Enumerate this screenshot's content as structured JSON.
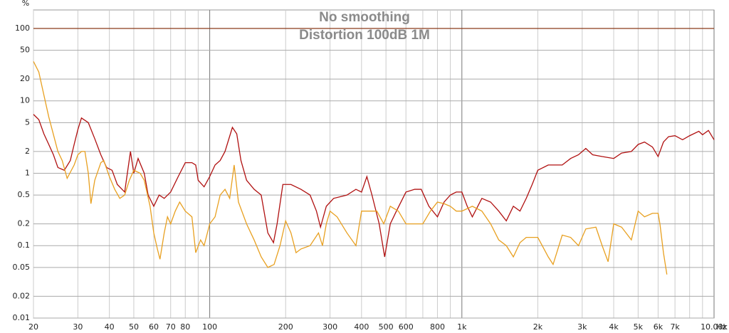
{
  "chart_data": {
    "type": "line",
    "title": "No smoothing",
    "subtitle": "Distortion 100dB 1M",
    "y_label": "%",
    "x_label": "Hz",
    "xscale": "log",
    "yscale": "log",
    "grid": true,
    "xlim": [
      20,
      10000
    ],
    "ylim": [
      0.01,
      180
    ],
    "xticks": [
      20,
      30,
      40,
      50,
      60,
      70,
      80,
      100,
      200,
      300,
      400,
      500,
      600,
      800,
      {
        "value": 1000,
        "label": "1k"
      },
      {
        "value": 2000,
        "label": "2k"
      },
      {
        "value": 3000,
        "label": "3k"
      },
      {
        "value": 4000,
        "label": "4k"
      },
      {
        "value": 5000,
        "label": "5k"
      },
      {
        "value": 6000,
        "label": "6k"
      },
      {
        "value": 7000,
        "label": "7k"
      },
      {
        "value": 10000,
        "label": "10.00k"
      }
    ],
    "xminor": [
      90,
      700,
      900,
      8000,
      9000
    ],
    "yticks": [
      100,
      50,
      20,
      10,
      5,
      2,
      1,
      0.5,
      0.2,
      0.1,
      0.05,
      0.02,
      0.01
    ],
    "reference_line": 100,
    "series": [
      {
        "color": "#b01010",
        "x": [
          20,
          21,
          22,
          23,
          24,
          25,
          26.5,
          28,
          29,
          30,
          31,
          33,
          35,
          37,
          39,
          41,
          43,
          46,
          48.5,
          50,
          52,
          55,
          57,
          60,
          63,
          66,
          70,
          75,
          80,
          85,
          88,
          90,
          95,
          100,
          105,
          110,
          115,
          123,
          128,
          133,
          140,
          150,
          160,
          170,
          179,
          185,
          195,
          210,
          230,
          250,
          265,
          275,
          290,
          310,
          350,
          380,
          400,
          420,
          440,
          470,
          494,
          520,
          550,
          600,
          650,
          690,
          740,
          800,
          850,
          900,
          950,
          1000,
          1050,
          1100,
          1200,
          1300,
          1400,
          1500,
          1600,
          1700,
          1800,
          1900,
          2000,
          2200,
          2500,
          2700,
          2900,
          3100,
          3300,
          3600,
          4000,
          4300,
          4700,
          5000,
          5300,
          5700,
          6000,
          6300,
          6600,
          7000,
          7500,
          8000,
          8700,
          9000,
          9500,
          10000
        ],
        "values": [
          6.5,
          5.5,
          3.5,
          2.5,
          1.8,
          1.2,
          1.1,
          1.5,
          2.5,
          4,
          5.8,
          5,
          3,
          1.8,
          1.2,
          1.1,
          0.7,
          0.55,
          2,
          1,
          1.6,
          1,
          0.5,
          0.35,
          0.5,
          0.45,
          0.55,
          0.9,
          1.4,
          1.4,
          1.3,
          0.8,
          0.65,
          0.9,
          1.3,
          1.5,
          2,
          4.3,
          3.5,
          1.5,
          0.8,
          0.6,
          0.5,
          0.15,
          0.11,
          0.2,
          0.7,
          0.7,
          0.6,
          0.5,
          0.3,
          0.18,
          0.35,
          0.45,
          0.5,
          0.6,
          0.55,
          0.9,
          0.5,
          0.2,
          0.07,
          0.2,
          0.3,
          0.55,
          0.6,
          0.6,
          0.35,
          0.25,
          0.4,
          0.5,
          0.55,
          0.55,
          0.35,
          0.25,
          0.45,
          0.4,
          0.3,
          0.22,
          0.35,
          0.3,
          0.45,
          0.7,
          1.1,
          1.3,
          1.3,
          1.6,
          1.8,
          2.2,
          1.8,
          1.7,
          1.6,
          1.9,
          2,
          2.5,
          2.7,
          2.3,
          1.7,
          2.7,
          3.2,
          3.3,
          2.9,
          3.3,
          3.8,
          3.4,
          3.9,
          2.9
        ]
      },
      {
        "color": "#e8a020",
        "x": [
          20,
          21,
          22,
          23,
          25,
          26,
          27.2,
          29,
          30,
          31,
          32,
          33,
          33.8,
          35,
          37,
          38,
          40,
          42,
          44,
          46,
          48,
          50,
          53,
          55,
          58,
          60,
          62,
          63.5,
          66,
          68,
          70,
          73,
          76,
          80,
          85,
          88,
          92,
          95,
          100,
          105,
          110,
          115,
          120,
          125,
          130,
          140,
          150,
          160,
          170,
          180,
          190,
          200,
          210,
          220,
          230,
          250,
          270,
          280,
          290,
          300,
          320,
          350,
          380,
          400,
          430,
          460,
          490,
          520,
          560,
          600,
          650,
          700,
          750,
          800,
          850,
          900,
          950,
          1000,
          1100,
          1200,
          1300,
          1400,
          1500,
          1600,
          1700,
          1800,
          1900,
          2000,
          2200,
          2300,
          2500,
          2700,
          2900,
          3100,
          3400,
          3600,
          3800,
          4000,
          4300,
          4700,
          5000,
          5300,
          5700,
          6000,
          6100,
          6300,
          6500
        ],
        "values": [
          35,
          25,
          12,
          6,
          2,
          1.5,
          0.85,
          1.3,
          1.8,
          2,
          2,
          1,
          0.38,
          0.8,
          1.4,
          1.5,
          0.9,
          0.6,
          0.45,
          0.5,
          0.8,
          1.1,
          1,
          0.8,
          0.35,
          0.15,
          0.09,
          0.065,
          0.15,
          0.25,
          0.2,
          0.3,
          0.4,
          0.3,
          0.25,
          0.08,
          0.12,
          0.1,
          0.2,
          0.25,
          0.5,
          0.6,
          0.45,
          1.3,
          0.4,
          0.2,
          0.12,
          0.07,
          0.05,
          0.055,
          0.1,
          0.22,
          0.15,
          0.08,
          0.09,
          0.1,
          0.15,
          0.1,
          0.2,
          0.3,
          0.25,
          0.15,
          0.1,
          0.3,
          0.3,
          0.3,
          0.2,
          0.35,
          0.3,
          0.2,
          0.2,
          0.2,
          0.3,
          0.4,
          0.38,
          0.35,
          0.3,
          0.3,
          0.35,
          0.3,
          0.2,
          0.12,
          0.1,
          0.07,
          0.11,
          0.13,
          0.13,
          0.13,
          0.07,
          0.055,
          0.14,
          0.13,
          0.1,
          0.17,
          0.18,
          0.1,
          0.06,
          0.2,
          0.18,
          0.12,
          0.3,
          0.25,
          0.28,
          0.28,
          0.2,
          0.08,
          0.04
        ]
      }
    ]
  }
}
